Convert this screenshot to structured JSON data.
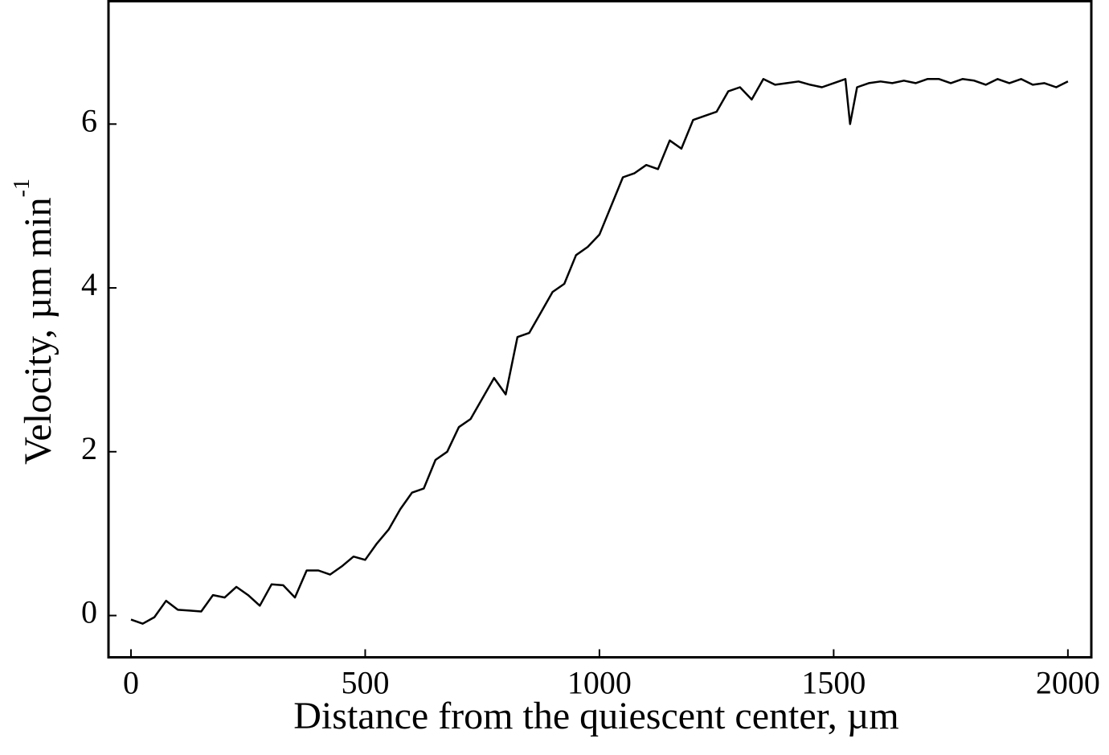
{
  "chart_data": {
    "type": "line",
    "x_label": "Distance from the quiescent center, µm",
    "y_label": "Velocity,  µm min",
    "y_label_exponent": "-1",
    "x": [
      0,
      25,
      50,
      75,
      100,
      125,
      150,
      175,
      200,
      225,
      250,
      275,
      300,
      325,
      350,
      375,
      400,
      425,
      450,
      475,
      500,
      525,
      550,
      575,
      600,
      625,
      650,
      675,
      700,
      725,
      750,
      775,
      800,
      825,
      850,
      875,
      900,
      925,
      950,
      975,
      1000,
      1025,
      1050,
      1075,
      1100,
      1125,
      1150,
      1175,
      1200,
      1225,
      1250,
      1275,
      1300,
      1325,
      1350,
      1375,
      1400,
      1425,
      1450,
      1475,
      1500,
      1525,
      1535,
      1550,
      1575,
      1600,
      1625,
      1650,
      1675,
      1700,
      1725,
      1750,
      1775,
      1800,
      1825,
      1850,
      1875,
      1900,
      1925,
      1950,
      1975,
      2000
    ],
    "values": [
      -0.05,
      -0.1,
      -0.02,
      0.18,
      0.07,
      0.06,
      0.05,
      0.25,
      0.22,
      0.35,
      0.25,
      0.12,
      0.38,
      0.37,
      0.22,
      0.55,
      0.55,
      0.5,
      0.6,
      0.72,
      0.68,
      0.88,
      1.05,
      1.3,
      1.5,
      1.55,
      1.9,
      2.0,
      2.3,
      2.4,
      2.65,
      2.9,
      2.7,
      3.4,
      3.45,
      3.7,
      3.95,
      4.05,
      4.4,
      4.5,
      4.65,
      5.0,
      5.35,
      5.4,
      5.5,
      5.45,
      5.8,
      5.7,
      6.05,
      6.1,
      6.15,
      6.4,
      6.45,
      6.3,
      6.55,
      6.48,
      6.5,
      6.52,
      6.48,
      6.45,
      6.5,
      6.55,
      6.0,
      6.45,
      6.5,
      6.52,
      6.5,
      6.53,
      6.5,
      6.55,
      6.55,
      6.5,
      6.55,
      6.53,
      6.48,
      6.55,
      6.5,
      6.55,
      6.48,
      6.5,
      6.45,
      6.52
    ],
    "color": "#000000",
    "xlim": [
      -48,
      2050
    ],
    "ylim": [
      -0.51,
      7.5
    ],
    "xticks": [
      0,
      500,
      1000,
      1500,
      2000
    ],
    "yticks": [
      0,
      2,
      4,
      6
    ],
    "grid": false
  }
}
